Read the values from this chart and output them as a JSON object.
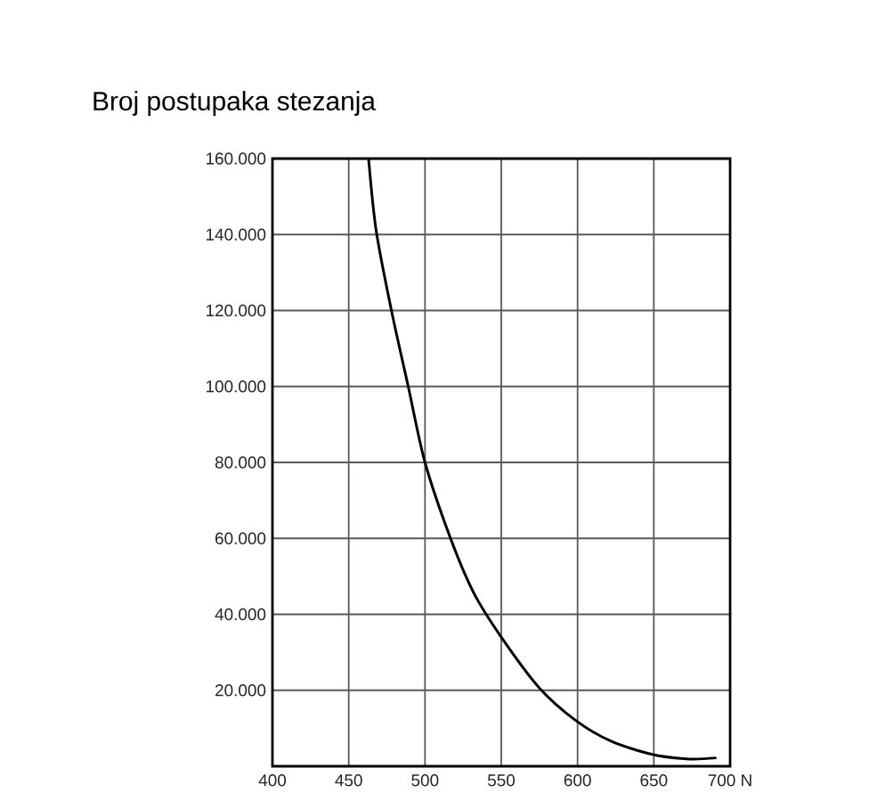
{
  "chart_data": {
    "type": "line",
    "title": "Broj postupaka stezanja",
    "series": [
      {
        "color": "#000000",
        "x": [
          463,
          468,
          478,
          489,
          500,
          517,
          532,
          550,
          575,
          599,
          622,
          649,
          673,
          691
        ],
        "values": [
          160000,
          141000,
          120000,
          100000,
          80000,
          59700,
          45600,
          34000,
          20600,
          12000,
          6600,
          3100,
          1900,
          2200
        ]
      }
    ],
    "xlim": [
      400,
      700
    ],
    "ylim": [
      0,
      160000
    ],
    "xticks": [
      400,
      450,
      500,
      550,
      600,
      650,
      {
        "value": 700,
        "label": "700 N"
      }
    ],
    "yticks": [
      {
        "value": 20000,
        "label": "20.000"
      },
      {
        "value": 40000,
        "label": "40.000"
      },
      {
        "value": 60000,
        "label": "60.000"
      },
      {
        "value": 80000,
        "label": "80.000"
      },
      {
        "value": 100000,
        "label": "100.000"
      },
      {
        "value": 120000,
        "label": "120.000"
      },
      {
        "value": 140000,
        "label": "140.000"
      },
      {
        "value": 160000,
        "label": "160.000"
      }
    ],
    "grid": true,
    "marker": "none",
    "line_style": "solid"
  }
}
